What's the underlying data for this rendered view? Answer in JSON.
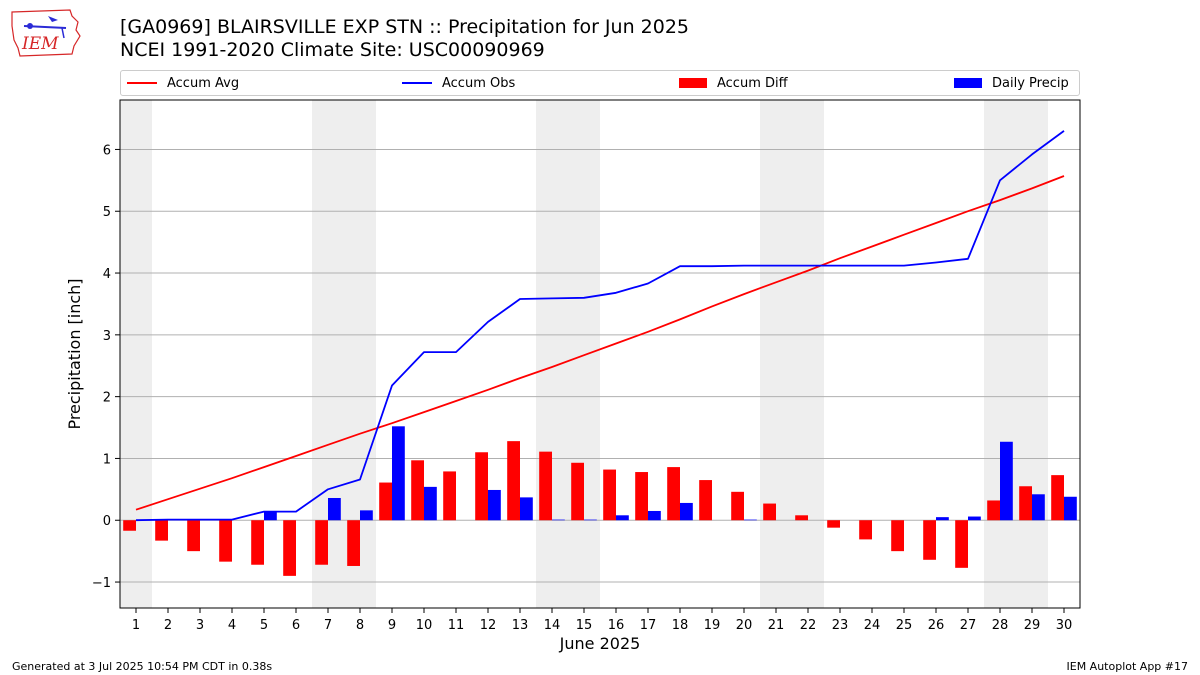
{
  "header": {
    "title": "[GA0969] BLAIRSVILLE EXP STN :: Precipitation for Jun 2025",
    "subtitle": "NCEI 1991-2020 Climate Site: USC00090969"
  },
  "logo": {
    "text": "IEM",
    "color": "#d62728"
  },
  "footer": {
    "left": "Generated at 3 Jul 2025 10:54 PM CDT in 0.38s",
    "right": "IEM Autoplot App #17"
  },
  "colors": {
    "accum_avg": "#ff0000",
    "accum_obs": "#0000ff",
    "accum_diff": "#ff0000",
    "daily_precip": "#0000ff",
    "weekend_shade": "#eeeeee",
    "grid": "#b0b0b0"
  },
  "chart_data": {
    "type": "bar",
    "xlabel": "June 2025",
    "ylabel": "Precipitation [inch]",
    "ylim": [
      -1.42,
      6.8
    ],
    "yticks": [
      -1,
      0,
      1,
      2,
      3,
      4,
      5,
      6
    ],
    "ytick_labels": [
      "−1",
      "0",
      "1",
      "2",
      "3",
      "4",
      "5",
      "6"
    ],
    "grid": "horizontal",
    "legend_position": "top",
    "categories": [
      "1",
      "2",
      "3",
      "4",
      "5",
      "6",
      "7",
      "8",
      "9",
      "10",
      "11",
      "12",
      "13",
      "14",
      "15",
      "16",
      "17",
      "18",
      "19",
      "20",
      "21",
      "22",
      "23",
      "24",
      "25",
      "26",
      "27",
      "28",
      "29",
      "30"
    ],
    "shaded_days": [
      1,
      7,
      8,
      14,
      15,
      21,
      22,
      28,
      29
    ],
    "series": [
      {
        "name": "Accum Avg",
        "type": "line",
        "values": [
          0.17,
          0.34,
          0.51,
          0.68,
          0.86,
          1.04,
          1.22,
          1.4,
          1.57,
          1.75,
          1.93,
          2.11,
          2.3,
          2.48,
          2.67,
          2.86,
          3.05,
          3.25,
          3.46,
          3.66,
          3.85,
          4.04,
          4.24,
          4.43,
          4.62,
          4.81,
          5.0,
          5.18,
          5.37,
          5.57
        ]
      },
      {
        "name": "Accum Obs",
        "type": "line",
        "values": [
          0.0,
          0.01,
          0.01,
          0.01,
          0.14,
          0.14,
          0.5,
          0.66,
          2.18,
          2.72,
          2.72,
          3.21,
          3.58,
          3.59,
          3.6,
          3.68,
          3.83,
          4.11,
          4.11,
          4.12,
          4.12,
          4.12,
          4.12,
          4.12,
          4.12,
          4.17,
          4.23,
          5.5,
          5.92,
          6.3
        ]
      },
      {
        "name": "Accum Diff",
        "type": "bar",
        "values": [
          -0.17,
          -0.33,
          -0.5,
          -0.67,
          -0.72,
          -0.9,
          -0.72,
          -0.74,
          0.61,
          0.97,
          0.79,
          1.1,
          1.28,
          1.11,
          0.93,
          0.82,
          0.78,
          0.86,
          0.65,
          0.46,
          0.27,
          0.08,
          -0.12,
          -0.31,
          -0.5,
          -0.64,
          -0.77,
          0.32,
          0.55,
          0.73
        ]
      },
      {
        "name": "Daily Precip",
        "type": "bar",
        "values": [
          0.0,
          0.01,
          0.0,
          0.0,
          0.13,
          0.0,
          0.36,
          0.16,
          1.52,
          0.54,
          0.0,
          0.49,
          0.37,
          0.01,
          0.01,
          0.08,
          0.15,
          0.28,
          0.0,
          0.01,
          0.0,
          0.0,
          0.0,
          0.0,
          0.0,
          0.05,
          0.06,
          1.27,
          0.42,
          0.38
        ]
      }
    ]
  }
}
